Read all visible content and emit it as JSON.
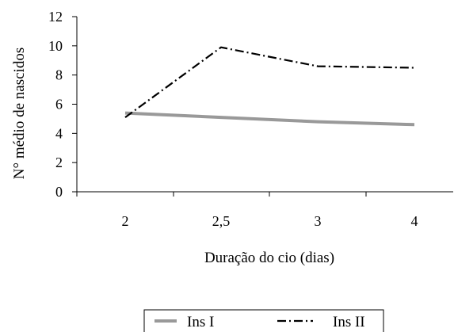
{
  "chart_data": {
    "type": "line",
    "categories": [
      "2",
      "2,5",
      "3",
      "4"
    ],
    "series": [
      {
        "name": "Ins I",
        "values": [
          5.4,
          5.1,
          4.8,
          4.6
        ],
        "color": "#999999",
        "style": "solid"
      },
      {
        "name": "Ins II",
        "values": [
          5.1,
          9.9,
          8.6,
          8.5
        ],
        "color": "#000000",
        "style": "dash-dot"
      }
    ],
    "xlabel": "Duração do cio (dias)",
    "ylabel": "N° médio de nascidos",
    "ylim": [
      0,
      12
    ],
    "yticks": [
      "0",
      "2",
      "4",
      "6",
      "8",
      "10",
      "12"
    ],
    "grid": false,
    "legend_position": "bottom"
  }
}
